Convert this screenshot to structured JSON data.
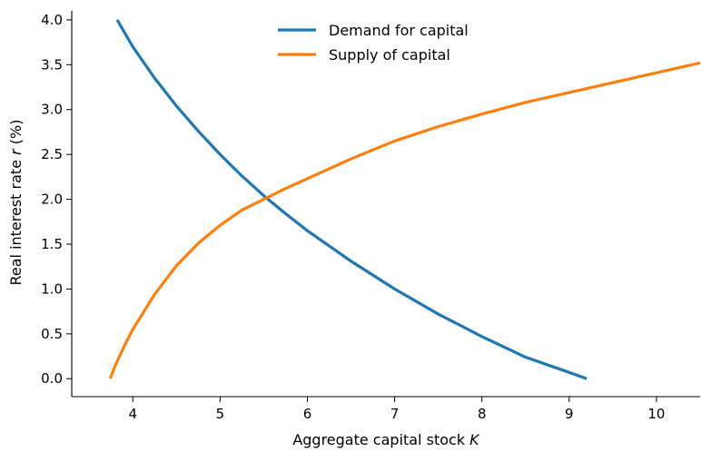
{
  "chart_data": {
    "type": "line",
    "title": "",
    "xlabel": {
      "prefix": "Aggregate capital stock ",
      "symbol": "K"
    },
    "ylabel": {
      "prefix": "Real interest rate ",
      "symbol": "r",
      "suffix": " (%)"
    },
    "xlim": [
      3.3,
      10.5
    ],
    "ylim": [
      -0.2,
      4.1
    ],
    "xticks": [
      4,
      5,
      6,
      7,
      8,
      9,
      10
    ],
    "xtick_labels": [
      "4",
      "5",
      "6",
      "7",
      "8",
      "9",
      "10"
    ],
    "yticks": [
      0,
      0.5,
      1.0,
      1.5,
      2.0,
      2.5,
      3.0,
      3.5,
      4.0
    ],
    "ytick_labels": [
      "0.0",
      "0.5",
      "1.0",
      "1.5",
      "2.0",
      "2.5",
      "3.0",
      "3.5",
      "4.0"
    ],
    "grid": false,
    "legend_position": "top-center",
    "series": [
      {
        "name": "Demand for capital",
        "color": "#1f77b4",
        "x": [
          3.82,
          4.0,
          4.25,
          4.5,
          4.75,
          5.0,
          5.25,
          5.5,
          5.75,
          6.0,
          6.5,
          7.0,
          7.5,
          8.0,
          8.5,
          9.0,
          9.2
        ],
        "y": [
          4.0,
          3.7,
          3.35,
          3.04,
          2.76,
          2.5,
          2.26,
          2.04,
          1.84,
          1.65,
          1.31,
          1.0,
          0.72,
          0.47,
          0.24,
          0.07,
          0.0
        ]
      },
      {
        "name": "Supply of capital",
        "color": "#ff7f0e",
        "x": [
          3.74,
          3.8,
          3.9,
          4.0,
          4.25,
          4.5,
          4.75,
          5.0,
          5.25,
          5.5,
          5.75,
          6.0,
          6.5,
          7.0,
          7.5,
          8.0,
          8.5,
          9.0,
          9.5,
          10.0,
          10.5
        ],
        "y": [
          0.0,
          0.15,
          0.36,
          0.55,
          0.94,
          1.26,
          1.51,
          1.71,
          1.88,
          2.0,
          2.12,
          2.23,
          2.45,
          2.65,
          2.81,
          2.95,
          3.08,
          3.19,
          3.3,
          3.41,
          3.52
        ]
      }
    ]
  }
}
